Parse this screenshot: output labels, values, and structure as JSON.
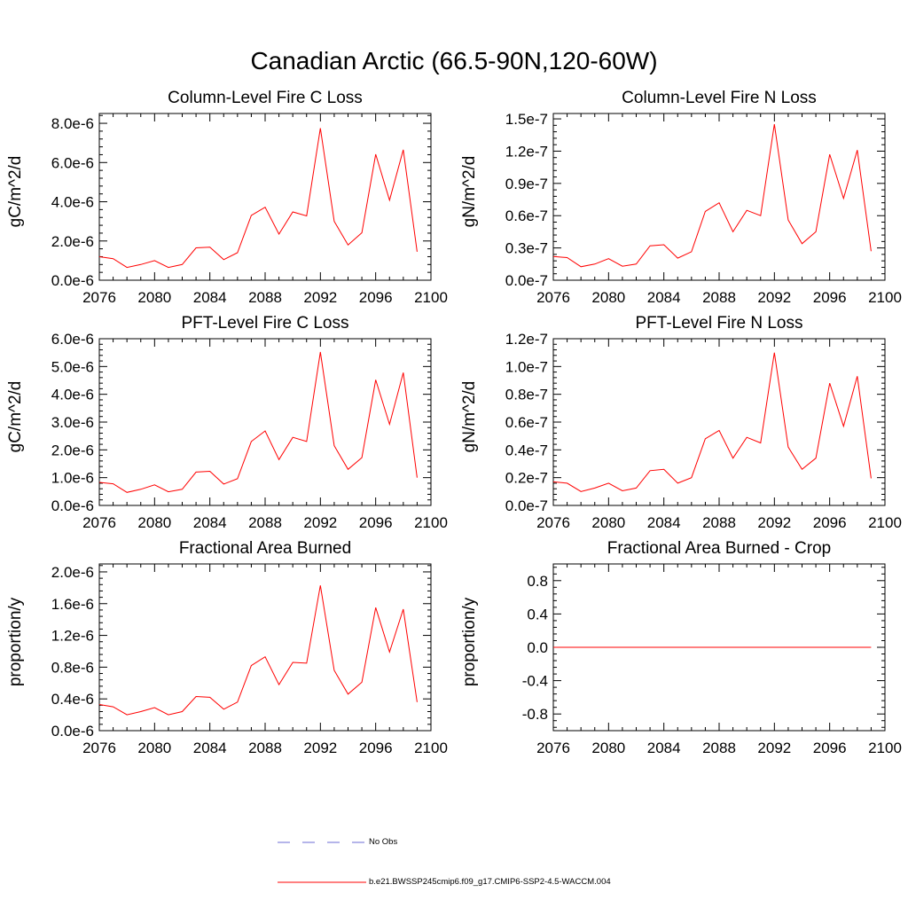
{
  "title": "Canadian Arctic (66.5-90N,120-60W)",
  "legend": {
    "entries": [
      {
        "label": "No Obs",
        "color": "#6b6bd6",
        "style": "dashed"
      },
      {
        "label": "b.e21.BWSSP245cmip6.f09_g17.CMIP6-SSP2-4.5-WACCM.004",
        "color": "#ff0000",
        "style": "solid"
      }
    ]
  },
  "colors": {
    "series": "#ff0000",
    "axis": "#000000"
  },
  "chart_data": [
    {
      "type": "line",
      "title": "Column-Level Fire C Loss",
      "ylabel": "gC/m^2/d",
      "xlim": [
        2076,
        2100
      ],
      "ylim": [
        0,
        8.5e-06
      ],
      "xticks": [
        2076,
        2080,
        2084,
        2088,
        2092,
        2096,
        2100
      ],
      "yticks": [
        0,
        2e-06,
        4e-06,
        6e-06,
        8e-06
      ],
      "yticklabels": [
        "0.0e-6",
        "2.0e-6",
        "4.0e-6",
        "6.0e-6",
        "8.0e-6"
      ],
      "x": [
        2076,
        2077,
        2078,
        2079,
        2080,
        2081,
        2082,
        2083,
        2084,
        2085,
        2086,
        2087,
        2088,
        2089,
        2090,
        2091,
        2092,
        2093,
        2094,
        2095,
        2096,
        2097,
        2098,
        2099
      ],
      "series": [
        {
          "color": "#ff0000",
          "values": [
            1.2e-06,
            1.1e-06,
            6.5e-07,
            8e-07,
            1e-06,
            6.5e-07,
            8e-07,
            1.65e-06,
            1.68e-06,
            1.05e-06,
            1.4e-06,
            3.3e-06,
            3.72e-06,
            2.35e-06,
            3.48e-06,
            3.28e-06,
            7.75e-06,
            3e-06,
            1.8e-06,
            2.42e-06,
            6.42e-06,
            4.08e-06,
            6.65e-06,
            1.45e-06
          ]
        }
      ]
    },
    {
      "type": "line",
      "title": "Column-Level Fire N Loss",
      "ylabel": "gN/m^2/d",
      "xlim": [
        2076,
        2100
      ],
      "ylim": [
        0,
        1.55e-07
      ],
      "xticks": [
        2076,
        2080,
        2084,
        2088,
        2092,
        2096,
        2100
      ],
      "yticks": [
        0,
        3e-08,
        6e-08,
        9e-08,
        1.2e-07,
        1.5e-07
      ],
      "yticklabels": [
        "0.0e-7",
        "0.3e-7",
        "0.6e-7",
        "0.9e-7",
        "1.2e-7",
        "1.5e-7"
      ],
      "x": [
        2076,
        2077,
        2078,
        2079,
        2080,
        2081,
        2082,
        2083,
        2084,
        2085,
        2086,
        2087,
        2088,
        2089,
        2090,
        2091,
        2092,
        2093,
        2094,
        2095,
        2096,
        2097,
        2098,
        2099
      ],
      "series": [
        {
          "color": "#ff0000",
          "values": [
            2.2e-08,
            2.1e-08,
            1.25e-08,
            1.5e-08,
            2e-08,
            1.3e-08,
            1.5e-08,
            3.2e-08,
            3.3e-08,
            2.05e-08,
            2.65e-08,
            6.4e-08,
            7.2e-08,
            4.5e-08,
            6.5e-08,
            6e-08,
            1.45e-07,
            5.6e-08,
            3.4e-08,
            4.5e-08,
            1.17e-07,
            7.6e-08,
            1.21e-07,
            2.7e-08
          ]
        }
      ]
    },
    {
      "type": "line",
      "title": "PFT-Level Fire C Loss",
      "ylabel": "gC/m^2/d",
      "xlim": [
        2076,
        2100
      ],
      "ylim": [
        0,
        6e-06
      ],
      "xticks": [
        2076,
        2080,
        2084,
        2088,
        2092,
        2096,
        2100
      ],
      "yticks": [
        0,
        1e-06,
        2e-06,
        3e-06,
        4e-06,
        5e-06,
        6e-06
      ],
      "yticklabels": [
        "0.0e-6",
        "1.0e-6",
        "2.0e-6",
        "3.0e-6",
        "4.0e-6",
        "5.0e-6",
        "6.0e-6"
      ],
      "x": [
        2076,
        2077,
        2078,
        2079,
        2080,
        2081,
        2082,
        2083,
        2084,
        2085,
        2086,
        2087,
        2088,
        2089,
        2090,
        2091,
        2092,
        2093,
        2094,
        2095,
        2096,
        2097,
        2098,
        2099
      ],
      "series": [
        {
          "color": "#ff0000",
          "values": [
            8.3e-07,
            7.8e-07,
            4.7e-07,
            5.8e-07,
            7.4e-07,
            4.9e-07,
            5.8e-07,
            1.2e-06,
            1.23e-06,
            7.7e-07,
            9.6e-07,
            2.3e-06,
            2.68e-06,
            1.65e-06,
            2.45e-06,
            2.3e-06,
            5.52e-06,
            2.15e-06,
            1.3e-06,
            1.72e-06,
            4.52e-06,
            2.92e-06,
            4.78e-06,
            1e-06
          ]
        }
      ]
    },
    {
      "type": "line",
      "title": "PFT-Level Fire N Loss",
      "ylabel": "gN/m^2/d",
      "xlim": [
        2076,
        2100
      ],
      "ylim": [
        0,
        1.2e-07
      ],
      "xticks": [
        2076,
        2080,
        2084,
        2088,
        2092,
        2096,
        2100
      ],
      "yticks": [
        0,
        2e-08,
        4e-08,
        6e-08,
        8e-08,
        1e-07,
        1.2e-07
      ],
      "yticklabels": [
        "0.0e-7",
        "0.2e-7",
        "0.4e-7",
        "0.6e-7",
        "0.8e-7",
        "1.0e-7",
        "1.2e-7"
      ],
      "x": [
        2076,
        2077,
        2078,
        2079,
        2080,
        2081,
        2082,
        2083,
        2084,
        2085,
        2086,
        2087,
        2088,
        2089,
        2090,
        2091,
        2092,
        2093,
        2094,
        2095,
        2096,
        2097,
        2098,
        2099
      ],
      "series": [
        {
          "color": "#ff0000",
          "values": [
            1.7e-08,
            1.6e-08,
            1e-08,
            1.25e-08,
            1.6e-08,
            1.05e-08,
            1.25e-08,
            2.5e-08,
            2.6e-08,
            1.6e-08,
            2e-08,
            4.8e-08,
            5.4e-08,
            3.4e-08,
            4.9e-08,
            4.5e-08,
            1.1e-07,
            4.2e-08,
            2.6e-08,
            3.4e-08,
            8.8e-08,
            5.7e-08,
            9.3e-08,
            1.95e-08
          ]
        }
      ]
    },
    {
      "type": "line",
      "title": "Fractional Area Burned",
      "ylabel": "proportion/y",
      "xlim": [
        2076,
        2100
      ],
      "ylim": [
        0,
        2.1e-06
      ],
      "xticks": [
        2076,
        2080,
        2084,
        2088,
        2092,
        2096,
        2100
      ],
      "yticks": [
        0,
        4e-07,
        8e-07,
        1.2e-06,
        1.6e-06,
        2e-06
      ],
      "yticklabels": [
        "0.0e-6",
        "0.4e-6",
        "0.8e-6",
        "1.2e-6",
        "1.6e-6",
        "2.0e-6"
      ],
      "x": [
        2076,
        2077,
        2078,
        2079,
        2080,
        2081,
        2082,
        2083,
        2084,
        2085,
        2086,
        2087,
        2088,
        2089,
        2090,
        2091,
        2092,
        2093,
        2094,
        2095,
        2096,
        2097,
        2098,
        2099
      ],
      "series": [
        {
          "color": "#ff0000",
          "values": [
            3.3e-07,
            3e-07,
            2e-07,
            2.4e-07,
            2.9e-07,
            2e-07,
            2.4e-07,
            4.3e-07,
            4.2e-07,
            2.7e-07,
            3.6e-07,
            8.2e-07,
            9.3e-07,
            5.8e-07,
            8.6e-07,
            8.5e-07,
            1.83e-06,
            7.6e-07,
            4.6e-07,
            6.1e-07,
            1.55e-06,
            9.9e-07,
            1.53e-06,
            3.6e-07
          ]
        }
      ]
    },
    {
      "type": "line",
      "title": "Fractional Area Burned - Crop",
      "ylabel": "proportion/y",
      "xlim": [
        2076,
        2100
      ],
      "ylim": [
        -1.0,
        1.0
      ],
      "xticks": [
        2076,
        2080,
        2084,
        2088,
        2092,
        2096,
        2100
      ],
      "yticks": [
        -0.8,
        -0.4,
        0.0,
        0.4,
        0.8
      ],
      "yticklabels": [
        "-0.8",
        "-0.4",
        "0.0",
        "0.4",
        "0.8"
      ],
      "x": [
        2076,
        2077,
        2078,
        2079,
        2080,
        2081,
        2082,
        2083,
        2084,
        2085,
        2086,
        2087,
        2088,
        2089,
        2090,
        2091,
        2092,
        2093,
        2094,
        2095,
        2096,
        2097,
        2098,
        2099
      ],
      "series": [
        {
          "color": "#ff0000",
          "values": [
            0,
            0,
            0,
            0,
            0,
            0,
            0,
            0,
            0,
            0,
            0,
            0,
            0,
            0,
            0,
            0,
            0,
            0,
            0,
            0,
            0,
            0,
            0,
            0
          ]
        }
      ]
    }
  ]
}
